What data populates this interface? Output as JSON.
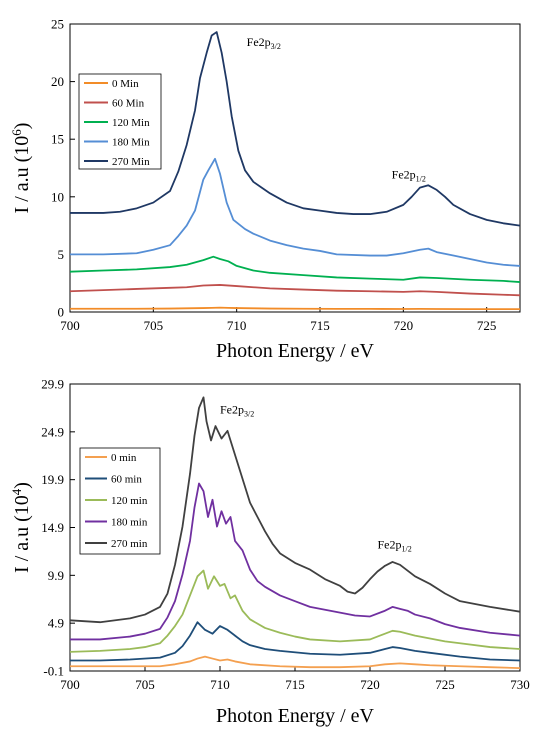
{
  "chart_data": [
    {
      "type": "line",
      "xlabel": "Photon Energy / eV",
      "ylabel": "I / a.u (10",
      "ylabel_exp": "6",
      "ylabel_close": ")",
      "xlim": [
        700,
        727
      ],
      "ylim": [
        0,
        25
      ],
      "xticks": [
        700,
        705,
        710,
        715,
        720,
        725
      ],
      "yticks": [
        0,
        5,
        10,
        15,
        20,
        25
      ],
      "legend": "top-left, boxed",
      "grid": false,
      "annotations": [
        {
          "base": "Fe2p",
          "sub": "3/2",
          "x": 710.6,
          "y": 23.1
        },
        {
          "base": "Fe2p",
          "sub": "1/2",
          "x": 719.3,
          "y": 11.6
        }
      ],
      "series": [
        {
          "name": "0 Min",
          "color": "#F28C28",
          "x": [
            700,
            702,
            704,
            706,
            707,
            708,
            708.5,
            709,
            709.5,
            710,
            711,
            712,
            714,
            716,
            718,
            720,
            721,
            722,
            724,
            726,
            727
          ],
          "y": [
            0.28,
            0.28,
            0.28,
            0.3,
            0.32,
            0.34,
            0.36,
            0.38,
            0.36,
            0.34,
            0.32,
            0.3,
            0.28,
            0.27,
            0.27,
            0.26,
            0.27,
            0.26,
            0.25,
            0.25,
            0.25
          ]
        },
        {
          "name": "60 Min",
          "color": "#C0504D",
          "x": [
            700,
            702,
            704,
            706,
            707,
            708,
            709,
            710,
            711,
            712,
            714,
            716,
            718,
            720,
            721,
            722,
            724,
            726,
            727
          ],
          "y": [
            1.8,
            1.9,
            2.0,
            2.1,
            2.15,
            2.3,
            2.35,
            2.25,
            2.15,
            2.05,
            1.95,
            1.85,
            1.8,
            1.75,
            1.8,
            1.75,
            1.6,
            1.5,
            1.45
          ]
        },
        {
          "name": "120 Min",
          "color": "#00B050",
          "x": [
            700,
            702,
            704,
            706,
            707,
            708,
            708.6,
            709,
            709.5,
            710,
            711,
            712,
            714,
            716,
            718,
            720,
            721,
            722,
            724,
            726,
            727
          ],
          "y": [
            3.5,
            3.6,
            3.7,
            3.9,
            4.1,
            4.5,
            4.8,
            4.6,
            4.4,
            4.0,
            3.6,
            3.4,
            3.2,
            3.0,
            2.9,
            2.8,
            3.0,
            2.95,
            2.8,
            2.7,
            2.6
          ]
        },
        {
          "name": "180 Min",
          "color": "#558ED5",
          "x": [
            700,
            702,
            704,
            705,
            706,
            706.5,
            707,
            707.5,
            708,
            708.3,
            708.7,
            709,
            709.4,
            709.8,
            710.5,
            711,
            712,
            713,
            714,
            715,
            716,
            718,
            719,
            720,
            721,
            721.5,
            722,
            723,
            724,
            725,
            726,
            727
          ],
          "y": [
            5.0,
            5.0,
            5.1,
            5.4,
            5.8,
            6.6,
            7.5,
            8.8,
            11.5,
            12.3,
            13.3,
            12.0,
            9.5,
            8.0,
            7.2,
            6.8,
            6.2,
            5.8,
            5.5,
            5.3,
            5.0,
            4.9,
            4.9,
            5.1,
            5.4,
            5.5,
            5.2,
            4.9,
            4.6,
            4.3,
            4.1,
            4.0
          ]
        },
        {
          "name": "270 Min",
          "color": "#1F3864",
          "x": [
            700,
            702,
            703,
            704,
            705,
            706,
            706.5,
            707,
            707.5,
            707.8,
            708.2,
            708.5,
            708.8,
            709.1,
            709.4,
            709.7,
            710.1,
            710.5,
            711,
            711.5,
            712,
            713,
            714,
            715,
            716,
            717,
            718,
            719,
            720,
            720.5,
            721,
            721.5,
            722,
            722.5,
            723,
            724,
            725,
            726,
            727
          ],
          "y": [
            8.6,
            8.6,
            8.7,
            9.0,
            9.5,
            10.5,
            12.2,
            14.5,
            17.5,
            20.3,
            22.5,
            24.0,
            24.3,
            22.5,
            20.0,
            17.0,
            14.0,
            12.3,
            11.3,
            10.8,
            10.3,
            9.5,
            9.0,
            8.8,
            8.6,
            8.5,
            8.5,
            8.7,
            9.3,
            10.0,
            10.8,
            11.0,
            10.6,
            10.0,
            9.3,
            8.5,
            8.0,
            7.7,
            7.5
          ]
        }
      ]
    },
    {
      "type": "line",
      "xlabel": "Photon Energy / eV",
      "ylabel": "I / a.u (10",
      "ylabel_exp": "4",
      "ylabel_close": ")",
      "xlim": [
        700,
        730
      ],
      "ylim": [
        -0.1,
        29.9
      ],
      "xticks": [
        700,
        705,
        710,
        715,
        720,
        725,
        730
      ],
      "yticks": [
        "-0.1",
        "4.9",
        "9.9",
        "14.9",
        "19.9",
        "24.9",
        "29.9"
      ],
      "legend": "top-left, boxed",
      "grid": false,
      "annotations": [
        {
          "base": "Fe2p",
          "sub": "3/2",
          "x": 710.0,
          "y": 26.8
        },
        {
          "base": "Fe2p",
          "sub": "1/2",
          "x": 720.5,
          "y": 12.7
        }
      ],
      "series": [
        {
          "name": "0 min",
          "color": "#F4A050",
          "x": [
            700,
            702,
            704,
            706,
            707,
            708,
            708.5,
            709,
            709.5,
            710,
            710.5,
            711,
            712,
            714,
            716,
            718,
            720,
            721,
            722,
            723,
            724,
            726,
            728,
            730
          ],
          "y": [
            0.4,
            0.4,
            0.4,
            0.4,
            0.6,
            0.9,
            1.2,
            1.4,
            1.2,
            1.0,
            1.1,
            0.9,
            0.6,
            0.4,
            0.3,
            0.3,
            0.4,
            0.6,
            0.7,
            0.6,
            0.5,
            0.4,
            0.3,
            0.2
          ]
        },
        {
          "name": "60 min",
          "color": "#1F4E79",
          "x": [
            700,
            702,
            704,
            706,
            707,
            707.5,
            708,
            708.5,
            709,
            709.5,
            710,
            710.5,
            711,
            711.5,
            712,
            713,
            714,
            716,
            718,
            720,
            721,
            721.5,
            722,
            723,
            724,
            726,
            728,
            730
          ],
          "y": [
            1.0,
            1.0,
            1.1,
            1.3,
            1.8,
            2.5,
            3.6,
            5.0,
            4.2,
            3.8,
            4.6,
            4.2,
            3.6,
            3.0,
            2.6,
            2.2,
            2.0,
            1.7,
            1.6,
            1.8,
            2.2,
            2.4,
            2.3,
            2.0,
            1.8,
            1.4,
            1.1,
            1.0
          ]
        },
        {
          "name": "120 min",
          "color": "#9BBB59",
          "x": [
            700,
            702,
            704,
            705,
            706,
            706.5,
            707,
            707.5,
            708,
            708.5,
            708.9,
            709.2,
            709.6,
            710,
            710.3,
            710.7,
            711,
            711.5,
            712,
            713,
            714,
            715,
            716,
            718,
            720,
            721,
            721.5,
            722,
            723,
            724,
            725,
            726,
            728,
            730
          ],
          "y": [
            1.9,
            2.0,
            2.2,
            2.4,
            2.8,
            3.6,
            4.6,
            5.8,
            7.8,
            9.8,
            10.4,
            8.5,
            9.8,
            8.8,
            9.0,
            7.5,
            7.8,
            6.2,
            5.3,
            4.4,
            3.9,
            3.5,
            3.2,
            3.0,
            3.2,
            3.8,
            4.1,
            4.0,
            3.6,
            3.3,
            3.0,
            2.8,
            2.4,
            2.2
          ]
        },
        {
          "name": "180 min",
          "color": "#7030A0",
          "x": [
            700,
            702,
            704,
            705,
            706,
            706.5,
            707,
            707.5,
            708,
            708.3,
            708.6,
            708.9,
            709.2,
            709.5,
            709.8,
            710.1,
            710.4,
            710.7,
            711,
            711.5,
            712,
            712.5,
            713,
            714,
            715,
            716,
            717,
            718,
            719,
            720,
            721,
            721.5,
            722,
            722.5,
            723,
            724,
            725,
            726,
            728,
            730
          ],
          "y": [
            3.2,
            3.2,
            3.5,
            3.8,
            4.3,
            5.5,
            7.2,
            10.0,
            13.5,
            17.0,
            19.5,
            18.7,
            16.0,
            17.8,
            15.0,
            16.6,
            15.3,
            16.0,
            13.5,
            12.5,
            10.5,
            9.3,
            8.7,
            7.8,
            7.2,
            6.6,
            6.3,
            6.0,
            5.7,
            5.6,
            6.2,
            6.6,
            6.4,
            6.2,
            5.8,
            5.4,
            4.8,
            4.4,
            3.9,
            3.6
          ]
        },
        {
          "name": "270 min",
          "color": "#404040",
          "x": [
            700,
            702,
            704,
            705,
            706,
            706.5,
            707,
            707.5,
            708,
            708.3,
            708.6,
            708.9,
            709.1,
            709.4,
            709.7,
            710.1,
            710.5,
            710.8,
            711.2,
            711.6,
            712,
            712.5,
            713,
            713.5,
            714,
            715,
            716,
            717,
            718,
            718.5,
            719,
            719.5,
            720,
            720.5,
            721,
            721.5,
            722,
            722.5,
            723,
            724,
            725,
            726,
            728,
            730
          ],
          "y": [
            5.2,
            5.0,
            5.4,
            5.8,
            6.6,
            8.0,
            11.0,
            15.0,
            20.5,
            24.5,
            27.4,
            28.5,
            26.0,
            24.0,
            25.5,
            24.2,
            25.0,
            23.5,
            21.5,
            19.5,
            17.5,
            16.0,
            14.5,
            13.2,
            12.2,
            11.2,
            10.5,
            9.5,
            8.8,
            8.2,
            8.0,
            8.6,
            9.5,
            10.3,
            10.9,
            11.3,
            11.0,
            10.4,
            9.8,
            9.0,
            8.0,
            7.2,
            6.6,
            6.1
          ]
        }
      ]
    }
  ]
}
